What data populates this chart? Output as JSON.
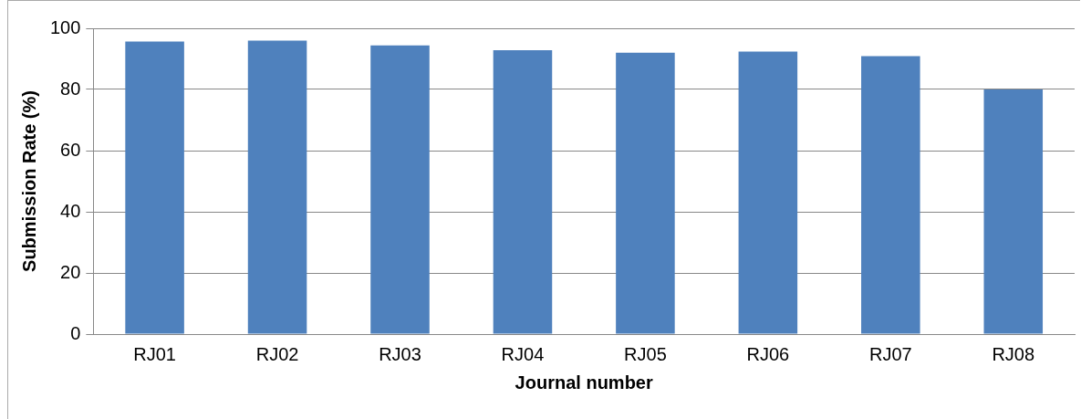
{
  "chart_data": {
    "type": "bar",
    "xlabel": "Journal number",
    "ylabel": "Submission Rate (%)",
    "categories": [
      "RJ01",
      "RJ02",
      "RJ03",
      "RJ04",
      "RJ05",
      "RJ06",
      "RJ07",
      "RJ08"
    ],
    "values": [
      95.7,
      96.0,
      94.4,
      92.8,
      92.0,
      92.4,
      90.9,
      80.0
    ],
    "color": "#4f81bd",
    "ylim": [
      0,
      100
    ],
    "yticks": [
      0,
      20,
      40,
      60,
      80,
      100
    ],
    "grid": "y",
    "legend": false
  }
}
